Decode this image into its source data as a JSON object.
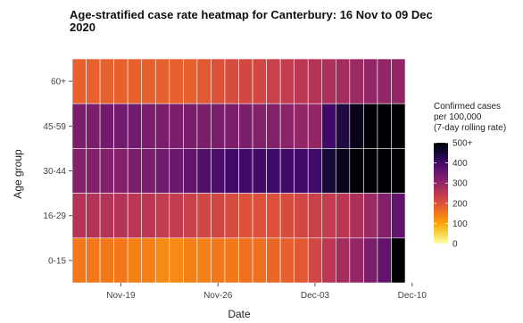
{
  "chart_data": {
    "type": "heatmap",
    "title_lines": [
      "Age-stratified case rate heatmap for Canterbury: 16 Nov to 09 Dec",
      "2020"
    ],
    "xlabel": "Date",
    "ylabel": "Age group",
    "x_tick_labels": [
      "Nov-19",
      "Nov-26",
      "Dec-03",
      "Dec-10"
    ],
    "x_tick_day_index": [
      3,
      10,
      17,
      24
    ],
    "dates": [
      "2020-11-16",
      "2020-11-17",
      "2020-11-18",
      "2020-11-19",
      "2020-11-20",
      "2020-11-21",
      "2020-11-22",
      "2020-11-23",
      "2020-11-24",
      "2020-11-25",
      "2020-11-26",
      "2020-11-27",
      "2020-11-28",
      "2020-11-29",
      "2020-11-30",
      "2020-12-01",
      "2020-12-02",
      "2020-12-03",
      "2020-12-04",
      "2020-12-05",
      "2020-12-06",
      "2020-12-07",
      "2020-12-08",
      "2020-12-09"
    ],
    "age_groups": [
      "60+",
      "45-59",
      "30-44",
      "16-29",
      "0-15"
    ],
    "values": [
      [
        180,
        180,
        180,
        180,
        180,
        180,
        180,
        180,
        180,
        190,
        200,
        210,
        220,
        220,
        230,
        240,
        250,
        260,
        270,
        280,
        290,
        300,
        300,
        300
      ],
      [
        330,
        330,
        340,
        340,
        340,
        330,
        330,
        330,
        330,
        330,
        330,
        330,
        330,
        320,
        320,
        310,
        300,
        300,
        400,
        440,
        480,
        500,
        500,
        500
      ],
      [
        320,
        320,
        320,
        320,
        330,
        330,
        340,
        350,
        360,
        380,
        390,
        400,
        400,
        400,
        400,
        400,
        400,
        400,
        450,
        480,
        500,
        500,
        500,
        500
      ],
      [
        260,
        260,
        260,
        260,
        250,
        250,
        240,
        240,
        230,
        220,
        220,
        210,
        200,
        200,
        200,
        210,
        220,
        230,
        240,
        250,
        270,
        290,
        320,
        360
      ],
      [
        150,
        150,
        150,
        150,
        140,
        140,
        130,
        130,
        140,
        140,
        150,
        150,
        160,
        160,
        170,
        180,
        190,
        220,
        250,
        280,
        300,
        330,
        360,
        500
      ]
    ],
    "color_range": [
      0,
      500
    ],
    "legend": {
      "title_lines": [
        "Confirmed cases",
        "per 100,000",
        "(7-day rolling rate)"
      ],
      "tick_labels": [
        "0",
        "100",
        "200",
        "300",
        "400",
        "500+"
      ],
      "tick_values": [
        0,
        100,
        200,
        300,
        400,
        500
      ],
      "placement": "right"
    },
    "colormap": [
      "#fcffa4",
      "#f6d746",
      "#fca50a",
      "#f37819",
      "#dd513a",
      "#bc3754",
      "#932667",
      "#6a176e",
      "#420a68",
      "#160b39",
      "#000004"
    ],
    "grid": false
  }
}
